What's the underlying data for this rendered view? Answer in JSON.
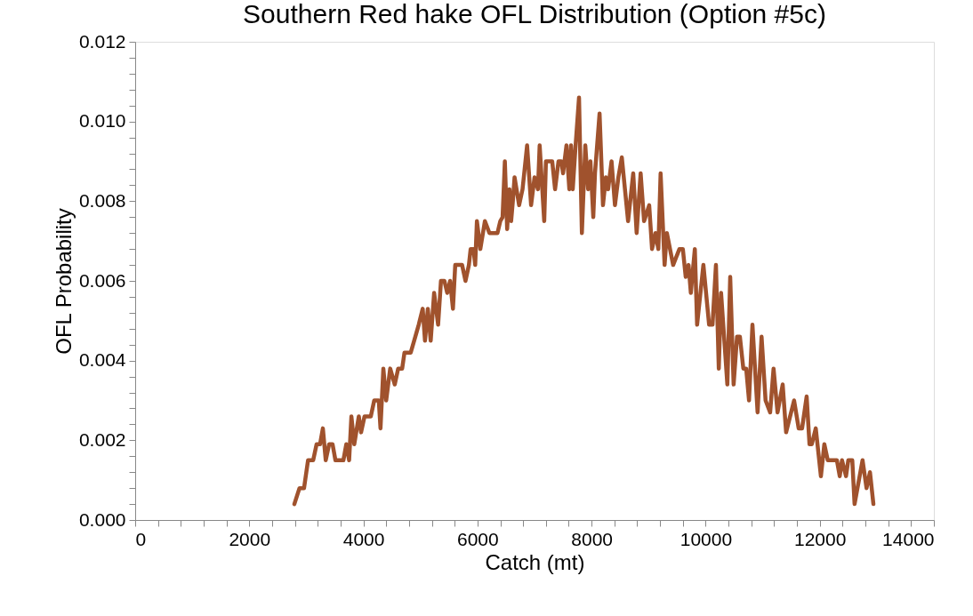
{
  "chart_data": {
    "type": "line",
    "title": "Southern Red hake OFL Distribution (Option #5c)",
    "xlabel": "Catch (mt)",
    "ylabel": "OFL Probability",
    "xlim": [
      0,
      14000
    ],
    "ylim": [
      0,
      0.012
    ],
    "xticks": [
      0,
      {
        "value": 400,
        "label": null
      },
      {
        "value": 800,
        "label": null
      },
      {
        "value": 1200,
        "label": null
      },
      {
        "value": 1600,
        "label": null
      },
      2000,
      {
        "value": 2400,
        "label": null
      },
      {
        "value": 2800,
        "label": null
      },
      {
        "value": 3200,
        "label": null
      },
      {
        "value": 3600,
        "label": null
      },
      4000,
      {
        "value": 4400,
        "label": null
      },
      {
        "value": 4800,
        "label": null
      },
      {
        "value": 5200,
        "label": null
      },
      {
        "value": 5600,
        "label": null
      },
      6000,
      {
        "value": 6400,
        "label": null
      },
      {
        "value": 6800,
        "label": null
      },
      {
        "value": 7200,
        "label": null
      },
      {
        "value": 7600,
        "label": null
      },
      8000,
      {
        "value": 8400,
        "label": null
      },
      {
        "value": 8800,
        "label": null
      },
      {
        "value": 9200,
        "label": null
      },
      {
        "value": 9600,
        "label": null
      },
      10000,
      {
        "value": 10400,
        "label": null
      },
      {
        "value": 10800,
        "label": null
      },
      {
        "value": 11200,
        "label": null
      },
      {
        "value": 11600,
        "label": null
      },
      12000,
      {
        "value": 12400,
        "label": null
      },
      {
        "value": 12800,
        "label": null
      },
      {
        "value": 13200,
        "label": null
      },
      {
        "value": 13600,
        "label": null
      },
      14000
    ],
    "yticks": [
      {
        "value": 0,
        "label": "0.000"
      },
      {
        "value": 0.0004,
        "label": null
      },
      {
        "value": 0.0008,
        "label": null
      },
      {
        "value": 0.0012,
        "label": null
      },
      {
        "value": 0.0016,
        "label": null
      },
      {
        "value": 0.002,
        "label": "0.002"
      },
      {
        "value": 0.0024,
        "label": null
      },
      {
        "value": 0.0028,
        "label": null
      },
      {
        "value": 0.0032,
        "label": null
      },
      {
        "value": 0.0036,
        "label": null
      },
      {
        "value": 0.004,
        "label": "0.004"
      },
      {
        "value": 0.0044,
        "label": null
      },
      {
        "value": 0.0048,
        "label": null
      },
      {
        "value": 0.0052,
        "label": null
      },
      {
        "value": 0.0056,
        "label": null
      },
      {
        "value": 0.006,
        "label": "0.006"
      },
      {
        "value": 0.0064,
        "label": null
      },
      {
        "value": 0.0068,
        "label": null
      },
      {
        "value": 0.0072,
        "label": null
      },
      {
        "value": 0.0076,
        "label": null
      },
      {
        "value": 0.008,
        "label": "0.008"
      },
      {
        "value": 0.0084,
        "label": null
      },
      {
        "value": 0.0088,
        "label": null
      },
      {
        "value": 0.0092,
        "label": null
      },
      {
        "value": 0.0096,
        "label": null
      },
      {
        "value": 0.01,
        "label": "0.010"
      },
      {
        "value": 0.0104,
        "label": null
      },
      {
        "value": 0.0108,
        "label": null
      },
      {
        "value": 0.0112,
        "label": null
      },
      {
        "value": 0.0116,
        "label": null
      },
      {
        "value": 0.012,
        "label": "0.012"
      }
    ],
    "grid": false,
    "legend": false,
    "marker": "none",
    "line_style": "solid",
    "series": [
      {
        "color": "#a0522d",
        "x": [
          2790,
          2880,
          2960,
          3030,
          3120,
          3180,
          3240,
          3290,
          3340,
          3400,
          3460,
          3510,
          3650,
          3700,
          3750,
          3790,
          3840,
          3920,
          3960,
          4020,
          4130,
          4190,
          4270,
          4300,
          4350,
          4400,
          4470,
          4550,
          4610,
          4680,
          4720,
          4830,
          4910,
          4970,
          5040,
          5080,
          5130,
          5180,
          5240,
          5310,
          5360,
          5420,
          5470,
          5520,
          5570,
          5610,
          5730,
          5790,
          5850,
          5880,
          5930,
          5960,
          5990,
          6050,
          6130,
          6210,
          6350,
          6400,
          6440,
          6480,
          6520,
          6560,
          6590,
          6620,
          6650,
          6730,
          6790,
          6870,
          6940,
          7000,
          7060,
          7090,
          7170,
          7200,
          7270,
          7310,
          7360,
          7420,
          7470,
          7500,
          7560,
          7610,
          7640,
          7670,
          7720,
          7780,
          7830,
          7890,
          7940,
          7980,
          8030,
          8060,
          8140,
          8200,
          8250,
          8290,
          8350,
          8410,
          8470,
          8530,
          8640,
          8730,
          8790,
          8860,
          8920,
          9010,
          9060,
          9120,
          9170,
          9210,
          9280,
          9320,
          9430,
          9540,
          9600,
          9650,
          9700,
          9740,
          9810,
          9850,
          9960,
          10060,
          10120,
          10180,
          10230,
          10270,
          10380,
          10430,
          10490,
          10550,
          10600,
          10660,
          10710,
          10760,
          10820,
          10910,
          10980,
          11050,
          11130,
          11190,
          11260,
          11350,
          11410,
          11550,
          11630,
          11690,
          11770,
          11820,
          11860,
          11930,
          12020,
          12080,
          12140,
          12300,
          12350,
          12390,
          12460,
          12500,
          12570,
          12610,
          12750,
          12820,
          12880,
          12940
        ],
        "values": [
          0.0004,
          0.0008,
          0.0008,
          0.0015,
          0.0015,
          0.0019,
          0.0019,
          0.0023,
          0.0015,
          0.0019,
          0.0019,
          0.0015,
          0.0015,
          0.0019,
          0.0015,
          0.0026,
          0.0019,
          0.0026,
          0.0022,
          0.0026,
          0.0026,
          0.003,
          0.003,
          0.0023,
          0.0038,
          0.003,
          0.0038,
          0.0034,
          0.0038,
          0.0038,
          0.0042,
          0.0042,
          0.0046,
          0.0049,
          0.0053,
          0.0045,
          0.0053,
          0.0045,
          0.0057,
          0.0049,
          0.006,
          0.006,
          0.0057,
          0.006,
          0.0053,
          0.0064,
          0.0064,
          0.006,
          0.0064,
          0.0068,
          0.0068,
          0.0064,
          0.0075,
          0.0068,
          0.0075,
          0.0072,
          0.0072,
          0.0075,
          0.0076,
          0.009,
          0.0073,
          0.0083,
          0.0075,
          0.008,
          0.0086,
          0.0079,
          0.0083,
          0.0094,
          0.0079,
          0.0086,
          0.0083,
          0.0094,
          0.0075,
          0.009,
          0.009,
          0.009,
          0.0083,
          0.009,
          0.009,
          0.0087,
          0.0094,
          0.0083,
          0.0094,
          0.0083,
          0.0094,
          0.0106,
          0.0072,
          0.0094,
          0.0083,
          0.009,
          0.0076,
          0.0087,
          0.0102,
          0.0079,
          0.0086,
          0.0083,
          0.009,
          0.0079,
          0.0086,
          0.0091,
          0.0075,
          0.0087,
          0.0072,
          0.0087,
          0.0075,
          0.0079,
          0.0068,
          0.0072,
          0.0068,
          0.0087,
          0.0064,
          0.0072,
          0.0064,
          0.0068,
          0.0068,
          0.0061,
          0.0064,
          0.0057,
          0.0068,
          0.0049,
          0.0064,
          0.0049,
          0.0049,
          0.0064,
          0.0038,
          0.0057,
          0.0034,
          0.0061,
          0.0034,
          0.0046,
          0.0046,
          0.0038,
          0.0038,
          0.003,
          0.0049,
          0.0027,
          0.0046,
          0.003,
          0.0027,
          0.0038,
          0.0027,
          0.0034,
          0.0022,
          0.003,
          0.0023,
          0.0023,
          0.0031,
          0.0019,
          0.0019,
          0.0023,
          0.0011,
          0.0019,
          0.0015,
          0.0015,
          0.0011,
          0.0015,
          0.0011,
          0.0015,
          0.0015,
          0.0004,
          0.0015,
          0.0008,
          0.0012,
          0.0004
        ]
      }
    ]
  }
}
